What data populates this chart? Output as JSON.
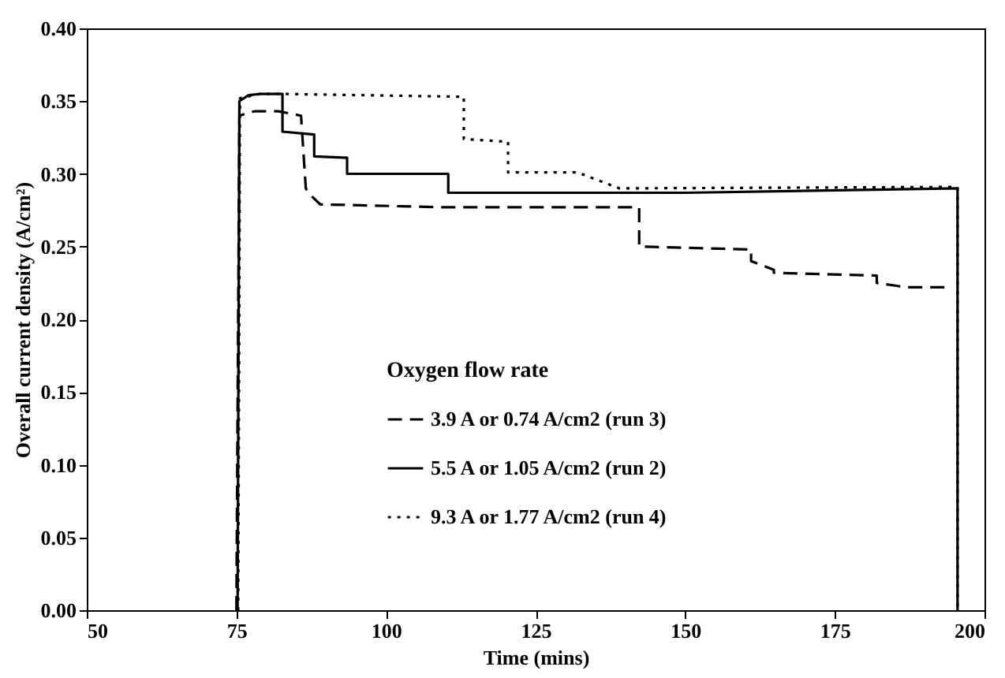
{
  "chart_data": {
    "type": "line",
    "xlabel": "Time (mins)",
    "ylabel": "Overall current density (A/cm²)",
    "legend_title": "Oxygen flow rate",
    "legend": "bottom",
    "grid": false,
    "marker": "none",
    "xlim": [
      50,
      200
    ],
    "xticks": [
      50,
      75,
      100,
      125,
      150,
      175,
      200
    ],
    "ylim": [
      0,
      0.4
    ],
    "yticks": [
      {
        "value": 0,
        "label": "0.00"
      },
      {
        "value": 0.05,
        "label": "0.05"
      },
      {
        "value": 0.1,
        "label": "0.10"
      },
      {
        "value": 0.15,
        "label": "0.15"
      },
      {
        "value": 0.2,
        "label": "0.20"
      },
      {
        "value": 0.25,
        "label": "0.25"
      },
      {
        "value": 0.3,
        "label": "0.30"
      },
      {
        "value": 0.35,
        "label": "0.35"
      },
      {
        "value": 0.4,
        "label": "0.40"
      }
    ],
    "series": [
      {
        "name": "3.9 A or 0.74 A/cm2  (run 3)",
        "color": "#000000",
        "line_style": "dashed",
        "x": [
          75,
          75.5,
          78,
          82,
          85.8,
          86.6,
          87.5,
          89,
          110,
          142.3,
          142.3,
          161,
          161,
          164.8,
          164.8,
          182,
          182,
          187,
          194.5
        ],
        "values": [
          0,
          0.34,
          0.343,
          0.343,
          0.34,
          0.29,
          0.285,
          0.279,
          0.277,
          0.277,
          0.25,
          0.248,
          0.24,
          0.234,
          0.232,
          0.23,
          0.225,
          0.222,
          0.222
        ]
      },
      {
        "name": "5.5 A or 1.05 A/cm2  (run 2)",
        "color": "#000000",
        "line_style": "solid",
        "x": [
          75.2,
          75.5,
          77,
          79,
          82.7,
          82.7,
          88,
          88,
          93.5,
          93.5,
          110.4,
          110.4,
          150,
          195.5,
          195.5
        ],
        "values": [
          0,
          0.35,
          0.354,
          0.355,
          0.355,
          0.329,
          0.327,
          0.312,
          0.311,
          0.3,
          0.3,
          0.287,
          0.287,
          0.29,
          0
        ]
      },
      {
        "name": "9.3 A or 1.77 A/cm2 (run 4)",
        "color": "#000000",
        "line_style": "dotted",
        "x": [
          75.3,
          75.6,
          79,
          82,
          113,
          113,
          120.4,
          120.4,
          132,
          139,
          195.5,
          195.5
        ],
        "values": [
          0,
          0.352,
          0.355,
          0.355,
          0.353,
          0.324,
          0.322,
          0.301,
          0.301,
          0.29,
          0.291,
          0
        ]
      }
    ]
  }
}
